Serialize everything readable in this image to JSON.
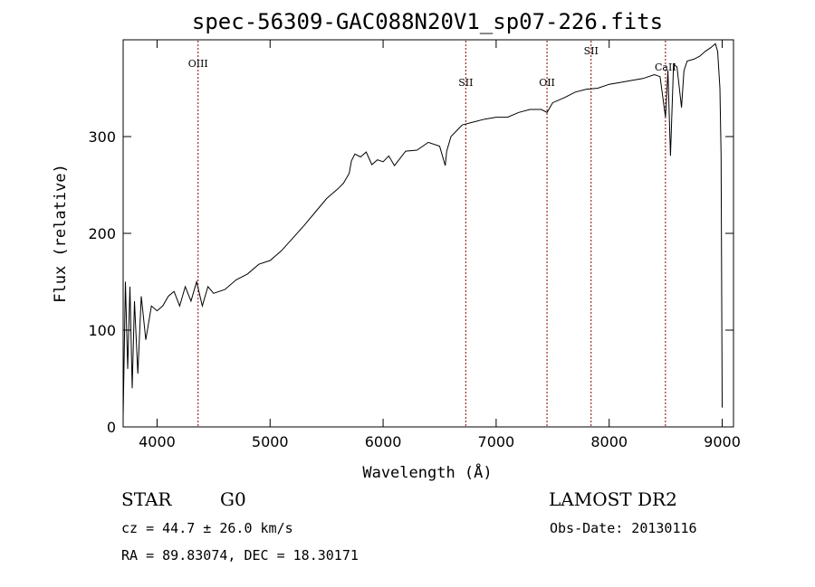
{
  "chart_data": {
    "type": "line",
    "title": "spec-56309-GAC088N20V1_sp07-226.fits",
    "xlabel": "Wavelength (Å)",
    "ylabel": "Flux (relative)",
    "xlim": [
      3700,
      9100
    ],
    "ylim": [
      0,
      400
    ],
    "x_ticks": [
      4000,
      5000,
      6000,
      7000,
      8000,
      9000
    ],
    "y_ticks": [
      0,
      100,
      200,
      300
    ],
    "grid": false,
    "series": [
      {
        "x": [
          3700,
          3720,
          3740,
          3760,
          3780,
          3800,
          3830,
          3860,
          3900,
          3950,
          4000,
          4050,
          4100,
          4150,
          4200,
          4250,
          4300,
          4350,
          4400,
          4450,
          4500,
          4600,
          4700,
          4800,
          4900,
          5000,
          5100,
          5200,
          5300,
          5400,
          5500,
          5600,
          5650,
          5700,
          5720,
          5750,
          5800,
          5850,
          5900,
          5950,
          6000,
          6050,
          6100,
          6200,
          6300,
          6400,
          6500,
          6550,
          6563,
          6600,
          6700,
          6800,
          6900,
          7000,
          7100,
          7200,
          7300,
          7400,
          7450,
          7500,
          7600,
          7700,
          7800,
          7900,
          8000,
          8100,
          8200,
          8300,
          8400,
          8450,
          8498,
          8520,
          8542,
          8570,
          8600,
          8640,
          8662,
          8690,
          8750,
          8800,
          8850,
          8900,
          8940,
          8960,
          8980,
          8990,
          9000
        ],
        "y": [
          10,
          150,
          60,
          145,
          40,
          130,
          55,
          135,
          90,
          125,
          120,
          125,
          135,
          140,
          125,
          145,
          130,
          150,
          125,
          145,
          138,
          142,
          152,
          158,
          168,
          172,
          182,
          195,
          208,
          222,
          236,
          246,
          252,
          262,
          275,
          282,
          279,
          284,
          271,
          276,
          274,
          280,
          270,
          285,
          286,
          294,
          290,
          270,
          285,
          300,
          312,
          315,
          318,
          320,
          320,
          325,
          328,
          328,
          325,
          335,
          340,
          346,
          349,
          350,
          354,
          356,
          358,
          360,
          364,
          362,
          320,
          368,
          280,
          375,
          372,
          330,
          368,
          378,
          380,
          383,
          388,
          392,
          396,
          388,
          350,
          280,
          20
        ]
      }
    ],
    "line_markers": [
      {
        "label": "OIII",
        "x": 4363
      },
      {
        "label": "SII",
        "x": 6731
      },
      {
        "label": "OII",
        "x": 7450
      },
      {
        "label": "SII",
        "x": 7840
      },
      {
        "label": "CaII",
        "x": 8498
      }
    ]
  },
  "info": {
    "object_type": "STAR",
    "subclass": "G0",
    "survey": "LAMOST DR2",
    "cz": "cz = 44.7 ± 26.0 km/s",
    "obs_date": "Obs-Date: 20130116",
    "coords": "RA =  89.83074, DEC =  18.30171"
  },
  "colors": {
    "spectrum": "#000000",
    "marker_line": "#8b0000",
    "axes": "#000000"
  }
}
